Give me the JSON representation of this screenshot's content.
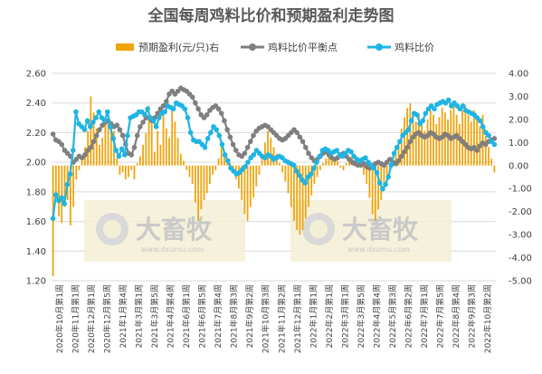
{
  "chart_data": {
    "type": "bar+line",
    "title": "全国每周鸡料比价和预期盈利走势图",
    "legend": [
      {
        "name": "预期盈利(元/只)右",
        "color": "#f0a30a",
        "kind": "bar"
      },
      {
        "name": "鸡料比价平衡点",
        "color": "#7f7f7f",
        "kind": "line-marker"
      },
      {
        "name": "鸡料比价",
        "color": "#1fb4e3",
        "kind": "line-marker"
      }
    ],
    "legend_position": "top",
    "y_left": {
      "min": 1.2,
      "max": 2.6,
      "ticks": [
        "1.20",
        "1.40",
        "1.60",
        "1.80",
        "2.00",
        "2.20",
        "2.40",
        "2.60"
      ]
    },
    "y_right": {
      "min": -5,
      "max": 4,
      "ticks": [
        "-5.00",
        "-4.00",
        "-3.00",
        "-2.00",
        "-1.00",
        "0.00",
        "1.00",
        "2.00",
        "3.00",
        "4.00"
      ]
    },
    "x_tick_labels": [
      "2020年10月第1周",
      "2020年11月第1周",
      "2020年12月第1周",
      "2020年12月第5周",
      "2021年1月第4周",
      "2021年3月第1周",
      "2021年3月第5周",
      "2021年4月第4周",
      "2021年6月第1周",
      "2021年6月第5周",
      "2021年7月第4周",
      "2021年8月第3周",
      "2021年9月第2周",
      "2021年10月第3周",
      "2021年11月第2周",
      "2021年12月第1周",
      "2022年1月第1周",
      "2022年2月第1周",
      "2022年3月第1周",
      "2022年3月第5周",
      "2022年4月第4周",
      "2022年5月第3周",
      "2022年6月第2周",
      "2022年7月第1周",
      "2022年7月第5周",
      "2022年8月第4周",
      "2022年9月第3周",
      "2022年10月第2周"
    ],
    "grid": "horizontal",
    "series": [
      {
        "name": "预期盈利(元/只)右",
        "axis": "right",
        "values": [
          -4.8,
          -1.2,
          -2.2,
          -2.5,
          -1.8,
          -1.5,
          -2.6,
          -1.8,
          -0.6,
          -0.2,
          0.3,
          0.8,
          1.5,
          3.0,
          2.3,
          1.6,
          0.9,
          1.2,
          1.9,
          2.2,
          1.8,
          1.5,
          0.3,
          -0.4,
          -0.3,
          -0.6,
          -0.5,
          -0.2,
          -0.6,
          0.1,
          0.4,
          0.9,
          1.4,
          2.6,
          1.9,
          0.6,
          1.5,
          0.9,
          2.2,
          1.6,
          1.2,
          2.6,
          1.9,
          1.2,
          0.5,
          0.2,
          -0.2,
          -0.5,
          -0.8,
          -1.6,
          -2.4,
          -1.9,
          -1.5,
          -1.2,
          -0.8,
          -0.4,
          -0.2,
          0.3,
          0.9,
          0.5,
          0.2,
          0.1,
          -0.3,
          -0.6,
          -1.0,
          -1.5,
          -2.1,
          -2.4,
          -1.8,
          -1.4,
          -0.9,
          -0.4,
          0.4,
          1.0,
          1.5,
          1.2,
          0.8,
          0.5,
          0.1,
          -0.3,
          -0.7,
          -1.2,
          -1.8,
          -2.4,
          -2.8,
          -3.0,
          -2.8,
          -2.3,
          -1.8,
          -1.3,
          -0.8,
          -0.5,
          -0.2,
          0.1,
          0.3,
          0.6,
          0.5,
          0.3,
          0.2,
          -0.1,
          -0.2,
          0.1,
          0.3,
          0.4,
          0.3,
          0.1,
          -0.1,
          -0.4,
          -0.8,
          -1.4,
          -2.1,
          -2.4,
          -1.9,
          -1.5,
          -1.1,
          -0.7,
          -0.3,
          0.2,
          0.6,
          1.0,
          1.6,
          2.1,
          2.5,
          2.7,
          2.3,
          1.9,
          2.2,
          1.8,
          1.5,
          2.0,
          2.4,
          2.2,
          1.8,
          2.1,
          2.5,
          2.3,
          2.0,
          2.4,
          2.7,
          2.2,
          1.8,
          2.4,
          2.6,
          2.2,
          1.9,
          2.4,
          2.1,
          1.7,
          2.2,
          1.3,
          0.8,
          0.3,
          -0.3
        ]
      },
      {
        "name": "鸡料比价平衡点",
        "axis": "left",
        "values": [
          2.19,
          2.15,
          2.14,
          2.12,
          2.08,
          2.06,
          2.04,
          2.0,
          2.02,
          2.04,
          2.03,
          2.05,
          2.08,
          2.1,
          2.14,
          2.18,
          2.22,
          2.25,
          2.27,
          2.28,
          2.26,
          2.24,
          2.25,
          2.22,
          2.18,
          2.12,
          2.06,
          2.05,
          2.1,
          2.18,
          2.24,
          2.27,
          2.3,
          2.3,
          2.28,
          2.3,
          2.33,
          2.36,
          2.38,
          2.41,
          2.46,
          2.48,
          2.46,
          2.48,
          2.5,
          2.49,
          2.48,
          2.46,
          2.44,
          2.4,
          2.36,
          2.32,
          2.3,
          2.32,
          2.35,
          2.37,
          2.38,
          2.36,
          2.33,
          2.28,
          2.22,
          2.17,
          2.12,
          2.08,
          2.05,
          2.04,
          2.06,
          2.1,
          2.14,
          2.18,
          2.21,
          2.23,
          2.24,
          2.25,
          2.24,
          2.22,
          2.2,
          2.18,
          2.16,
          2.15,
          2.16,
          2.18,
          2.2,
          2.22,
          2.2,
          2.17,
          2.14,
          2.1,
          2.06,
          2.03,
          2.01,
          2.02,
          2.04,
          2.06,
          2.07,
          2.05,
          2.03,
          2.02,
          2.03,
          2.05,
          2.06,
          2.04,
          2.02,
          2.0,
          1.99,
          1.98,
          1.98,
          1.99,
          1.97,
          1.96,
          1.97,
          1.99,
          2.0,
          1.99,
          1.98,
          2.0,
          2.02,
          2.0,
          1.99,
          2.01,
          2.04,
          2.07,
          2.1,
          2.14,
          2.17,
          2.19,
          2.2,
          2.18,
          2.17,
          2.18,
          2.2,
          2.19,
          2.17,
          2.16,
          2.17,
          2.19,
          2.18,
          2.16,
          2.17,
          2.18,
          2.16,
          2.14,
          2.12,
          2.1,
          2.09,
          2.1,
          2.08,
          2.11,
          2.13,
          2.12,
          2.14,
          2.15,
          2.16
        ]
      },
      {
        "name": "鸡料比价",
        "axis": "left",
        "values": [
          1.62,
          1.78,
          1.74,
          1.76,
          1.72,
          1.85,
          1.92,
          2.08,
          2.34,
          2.26,
          2.24,
          2.22,
          2.28,
          2.24,
          2.27,
          2.3,
          2.34,
          2.3,
          2.28,
          2.34,
          2.24,
          2.16,
          2.08,
          2.04,
          2.09,
          2.05,
          2.18,
          2.3,
          2.31,
          2.32,
          2.34,
          2.34,
          2.32,
          2.36,
          2.3,
          2.28,
          2.24,
          2.3,
          2.33,
          2.34,
          2.38,
          2.37,
          2.36,
          2.4,
          2.39,
          2.38,
          2.36,
          2.3,
          2.2,
          2.15,
          2.14,
          2.14,
          2.12,
          2.1,
          2.16,
          2.2,
          2.24,
          2.22,
          2.18,
          2.12,
          2.05,
          2.01,
          1.96,
          1.94,
          1.92,
          1.93,
          1.95,
          1.97,
          2.0,
          2.03,
          2.05,
          2.08,
          2.06,
          2.04,
          2.03,
          2.05,
          2.04,
          2.02,
          2.03,
          2.04,
          2.03,
          2.01,
          2.0,
          1.99,
          1.98,
          1.94,
          1.91,
          1.88,
          1.86,
          1.9,
          1.92,
          1.96,
          2.0,
          2.04,
          2.08,
          2.09,
          2.08,
          2.06,
          2.07,
          2.08,
          2.05,
          2.04,
          2.06,
          2.08,
          2.07,
          2.04,
          2.02,
          2.01,
          2.02,
          2.03,
          2.0,
          1.98,
          1.96,
          1.93,
          1.86,
          1.82,
          1.85,
          1.9,
          1.98,
          2.06,
          2.1,
          2.14,
          2.18,
          2.2,
          2.22,
          2.28,
          2.33,
          2.32,
          2.26,
          2.28,
          2.33,
          2.36,
          2.38,
          2.36,
          2.39,
          2.4,
          2.41,
          2.4,
          2.42,
          2.38,
          2.4,
          2.38,
          2.36,
          2.38,
          2.35,
          2.34,
          2.33,
          2.32,
          2.3,
          2.28,
          2.24,
          2.2,
          2.18,
          2.14,
          2.12
        ]
      }
    ],
    "watermark": {
      "text": "大畜牧",
      "sub": "www.dxumu.com"
    }
  }
}
